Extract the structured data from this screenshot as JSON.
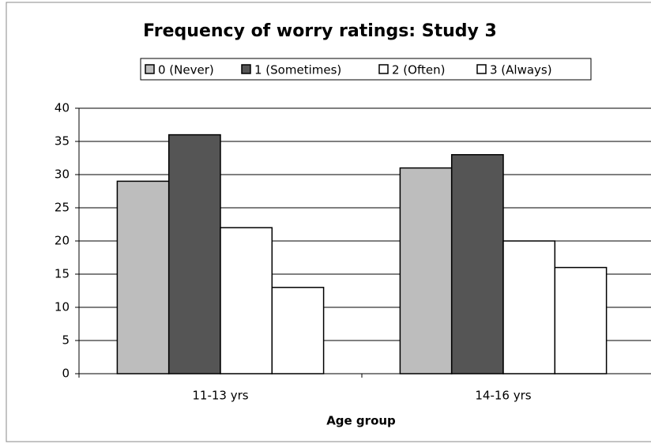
{
  "chart_data": {
    "type": "bar",
    "title": "Frequency of worry ratings: Study 3",
    "x_label": "Age group",
    "categories": [
      "11-13 yrs",
      "14-16 yrs"
    ],
    "series": [
      {
        "name": "0 (Never)",
        "color": "#bdbdbd",
        "values": [
          29,
          31
        ]
      },
      {
        "name": "1 (Sometimes)",
        "color": "#555555",
        "values": [
          36,
          33
        ]
      },
      {
        "name": "2 (Often)",
        "color": "#ffffff",
        "values": [
          22,
          20
        ]
      },
      {
        "name": "3 (Always)",
        "color": "#ffffff",
        "values": [
          13,
          16
        ]
      }
    ],
    "ylim": [
      0,
      40
    ],
    "yticks": [
      0,
      5,
      10,
      15,
      20,
      25,
      30,
      35,
      40
    ],
    "grid": true,
    "legend": "top"
  }
}
